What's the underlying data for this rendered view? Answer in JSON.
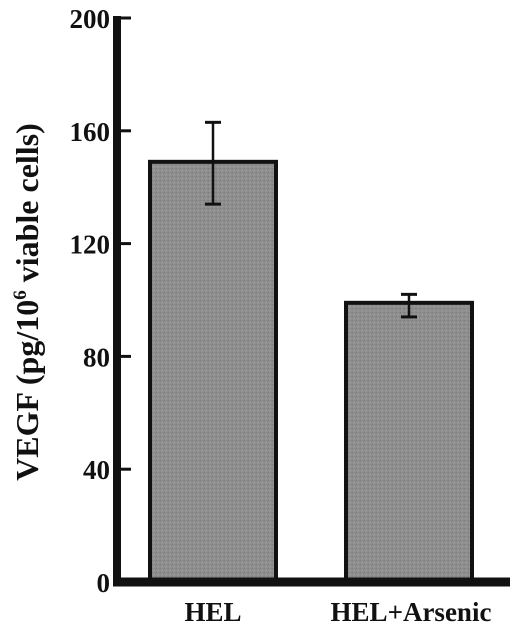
{
  "chart_data": {
    "type": "bar",
    "categories": [
      "HEL",
      "HEL+Arsenic"
    ],
    "values": [
      149,
      99
    ],
    "error_upper": [
      163,
      102
    ],
    "error_lower": [
      134,
      94
    ],
    "ylim": [
      0,
      200
    ],
    "yticks": [
      "0",
      "40",
      "80",
      "120",
      "160",
      "200"
    ],
    "ylabel": {
      "before": "VEGF (pg/10",
      "superscript": "6",
      "after": " viable cells)"
    },
    "xlabel": "",
    "title": "",
    "grid": false,
    "bar_color": "#8e8e8e",
    "axis_color": "#111111"
  }
}
